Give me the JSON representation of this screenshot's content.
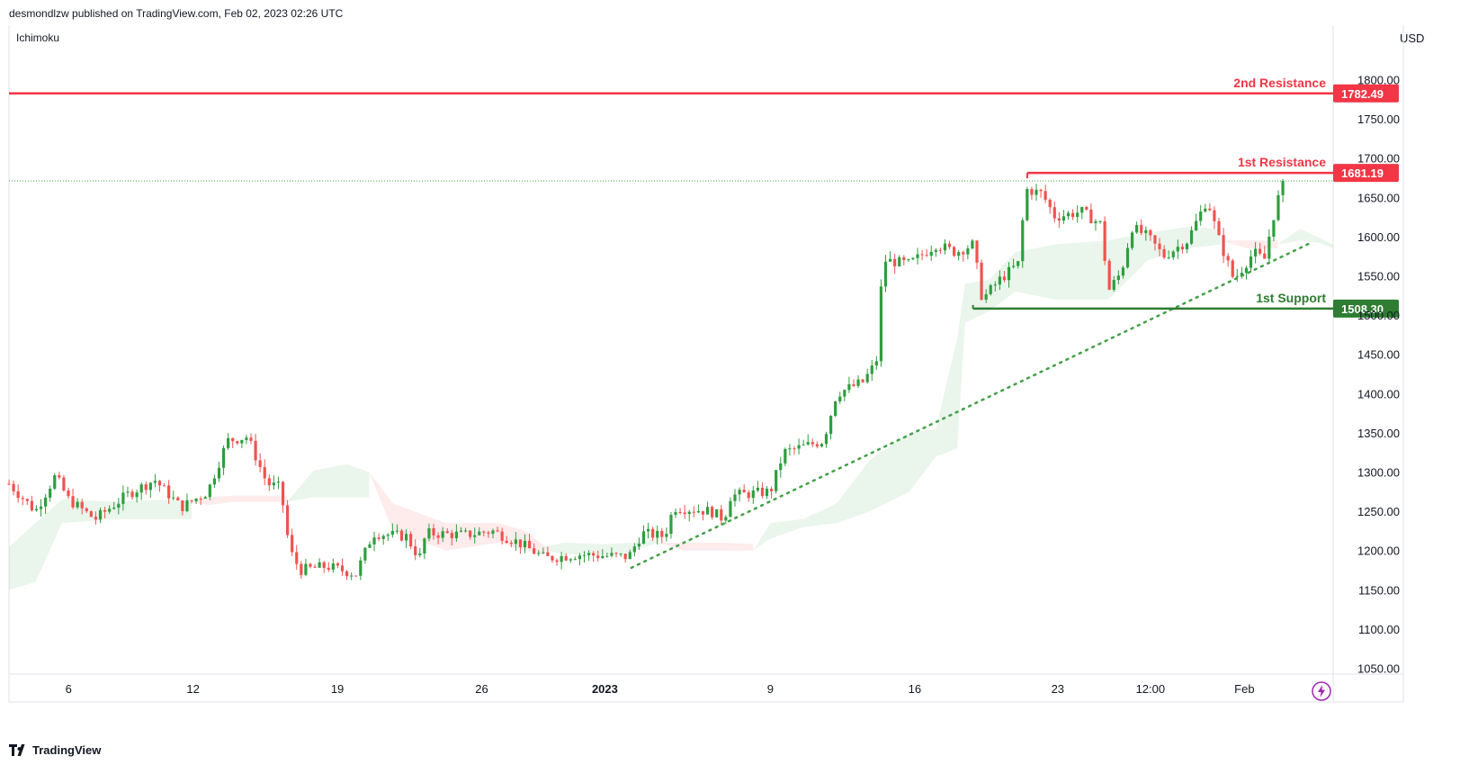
{
  "header": {
    "publisher": "desmondlzw published on TradingView.com, Feb 02, 2023 02:26 UTC"
  },
  "indicator": {
    "label": "Ichimoku"
  },
  "axis": {
    "currency": "USD"
  },
  "footer": {
    "brand": "TradingView",
    "logo_icon": "tradingview-logo-icon"
  },
  "chart_data": {
    "type": "candlestick",
    "title": "",
    "y_ticks": [
      1050,
      1100,
      1150,
      1200,
      1250,
      1300,
      1350,
      1400,
      1450,
      1500,
      1550,
      1600,
      1650,
      1700,
      1750,
      1800
    ],
    "y_tick_labels": [
      "1050.00",
      "1100.00",
      "1150.00",
      "1200.00",
      "1250.00",
      "1300.00",
      "1350.00",
      "1400.00",
      "1450.00",
      "1500.00",
      "1550.00",
      "1600.00",
      "1650.00",
      "1700.00",
      "1750.00",
      "1800.00"
    ],
    "ylim": [
      1040,
      1830
    ],
    "x_labels": [
      {
        "label": "6",
        "bold": false,
        "position": 0.045
      },
      {
        "label": "12",
        "bold": false,
        "position": 0.139
      },
      {
        "label": "19",
        "bold": false,
        "position": 0.248
      },
      {
        "label": "26",
        "bold": false,
        "position": 0.357
      },
      {
        "label": "2023",
        "bold": true,
        "position": 0.45
      },
      {
        "label": "9",
        "bold": false,
        "position": 0.575
      },
      {
        "label": "16",
        "bold": false,
        "position": 0.684
      },
      {
        "label": "23",
        "bold": false,
        "position": 0.792
      },
      {
        "label": "12:00",
        "bold": false,
        "position": 0.862
      },
      {
        "label": "Feb",
        "bold": false,
        "position": 0.933
      }
    ],
    "levels": [
      {
        "name": "2nd Resistance",
        "value": 1782.49,
        "label": "1782.49",
        "color": "#f23645",
        "start": 0.0
      },
      {
        "name": "1st Resistance",
        "value": 1681.19,
        "label": "1681.19",
        "color": "#f23645",
        "start": 0.769
      },
      {
        "name": "1st Support",
        "value": 1508.3,
        "label": "1508.30",
        "color": "#2e7d32",
        "start": 0.728
      }
    ],
    "last_price": 1671,
    "trendline": {
      "from": {
        "position": 0.47,
        "value": 1178
      },
      "to": {
        "position": 0.983,
        "value": 1592
      },
      "color": "#43a047"
    },
    "anchors": [
      {
        "p": 0.0,
        "v": 1285
      },
      {
        "p": 0.02,
        "v": 1250
      },
      {
        "p": 0.035,
        "v": 1295
      },
      {
        "p": 0.045,
        "v": 1265
      },
      {
        "p": 0.065,
        "v": 1240
      },
      {
        "p": 0.09,
        "v": 1272
      },
      {
        "p": 0.11,
        "v": 1290
      },
      {
        "p": 0.13,
        "v": 1255
      },
      {
        "p": 0.15,
        "v": 1275
      },
      {
        "p": 0.165,
        "v": 1340
      },
      {
        "p": 0.18,
        "v": 1345
      },
      {
        "p": 0.195,
        "v": 1285
      },
      {
        "p": 0.205,
        "v": 1280
      },
      {
        "p": 0.212,
        "v": 1200
      },
      {
        "p": 0.22,
        "v": 1175
      },
      {
        "p": 0.24,
        "v": 1180
      },
      {
        "p": 0.262,
        "v": 1170
      },
      {
        "p": 0.275,
        "v": 1222
      },
      {
        "p": 0.3,
        "v": 1218
      },
      {
        "p": 0.31,
        "v": 1190
      },
      {
        "p": 0.315,
        "v": 1222
      },
      {
        "p": 0.345,
        "v": 1220
      },
      {
        "p": 0.365,
        "v": 1225
      },
      {
        "p": 0.385,
        "v": 1210
      },
      {
        "p": 0.405,
        "v": 1190
      },
      {
        "p": 0.43,
        "v": 1195
      },
      {
        "p": 0.468,
        "v": 1192
      },
      {
        "p": 0.478,
        "v": 1222
      },
      {
        "p": 0.495,
        "v": 1218
      },
      {
        "p": 0.502,
        "v": 1255
      },
      {
        "p": 0.53,
        "v": 1250
      },
      {
        "p": 0.54,
        "v": 1240
      },
      {
        "p": 0.545,
        "v": 1270
      },
      {
        "p": 0.575,
        "v": 1275
      },
      {
        "p": 0.585,
        "v": 1325
      },
      {
        "p": 0.615,
        "v": 1340
      },
      {
        "p": 0.625,
        "v": 1400
      },
      {
        "p": 0.645,
        "v": 1415
      },
      {
        "p": 0.655,
        "v": 1440
      },
      {
        "p": 0.66,
        "v": 1570
      },
      {
        "p": 0.68,
        "v": 1565
      },
      {
        "p": 0.7,
        "v": 1590
      },
      {
        "p": 0.715,
        "v": 1580
      },
      {
        "p": 0.728,
        "v": 1590
      },
      {
        "p": 0.735,
        "v": 1520
      },
      {
        "p": 0.748,
        "v": 1545
      },
      {
        "p": 0.762,
        "v": 1565
      },
      {
        "p": 0.768,
        "v": 1660
      },
      {
        "p": 0.78,
        "v": 1655
      },
      {
        "p": 0.79,
        "v": 1625
      },
      {
        "p": 0.81,
        "v": 1632
      },
      {
        "p": 0.825,
        "v": 1615
      },
      {
        "p": 0.83,
        "v": 1530
      },
      {
        "p": 0.84,
        "v": 1555
      },
      {
        "p": 0.848,
        "v": 1612
      },
      {
        "p": 0.86,
        "v": 1600
      },
      {
        "p": 0.872,
        "v": 1575
      },
      {
        "p": 0.89,
        "v": 1595
      },
      {
        "p": 0.905,
        "v": 1648
      },
      {
        "p": 0.913,
        "v": 1600
      },
      {
        "p": 0.925,
        "v": 1545
      },
      {
        "p": 0.94,
        "v": 1580
      },
      {
        "p": 0.948,
        "v": 1570
      },
      {
        "p": 0.954,
        "v": 1620
      },
      {
        "p": 0.962,
        "v": 1671
      }
    ],
    "cloud_segments": [
      {
        "bullish": true,
        "points": [
          [
            0.0,
            1205,
            1150
          ],
          [
            0.02,
            1235,
            1160
          ],
          [
            0.04,
            1265,
            1235
          ],
          [
            0.08,
            1262,
            1240
          ],
          [
            0.12,
            1265,
            1240
          ],
          [
            0.138,
            1262,
            1240
          ]
        ]
      },
      {
        "bullish": false,
        "points": [
          [
            0.138,
            1262,
            1262
          ],
          [
            0.15,
            1268,
            1258
          ],
          [
            0.17,
            1270,
            1262
          ],
          [
            0.21,
            1270,
            1262
          ]
        ]
      },
      {
        "bullish": true,
        "points": [
          [
            0.21,
            1262,
            1262
          ],
          [
            0.23,
            1302,
            1268
          ],
          [
            0.255,
            1310,
            1268
          ],
          [
            0.272,
            1300,
            1268
          ]
        ]
      },
      {
        "bullish": false,
        "points": [
          [
            0.272,
            1300,
            1300
          ],
          [
            0.29,
            1260,
            1225
          ],
          [
            0.33,
            1235,
            1200
          ],
          [
            0.37,
            1235,
            1210
          ],
          [
            0.39,
            1225,
            1200
          ],
          [
            0.405,
            1205,
            1195
          ]
        ]
      },
      {
        "bullish": true,
        "points": [
          [
            0.405,
            1205,
            1200
          ],
          [
            0.42,
            1210,
            1195
          ],
          [
            0.45,
            1208,
            1195
          ],
          [
            0.47,
            1210,
            1198
          ],
          [
            0.49,
            1215,
            1210
          ]
        ]
      },
      {
        "bullish": false,
        "points": [
          [
            0.49,
            1210,
            1210
          ],
          [
            0.51,
            1210,
            1200
          ],
          [
            0.54,
            1210,
            1200
          ],
          [
            0.562,
            1208,
            1200
          ]
        ]
      },
      {
        "bullish": true,
        "points": [
          [
            0.562,
            1200,
            1200
          ],
          [
            0.575,
            1235,
            1215
          ],
          [
            0.6,
            1240,
            1230
          ],
          [
            0.625,
            1260,
            1235
          ],
          [
            0.65,
            1315,
            1250
          ],
          [
            0.68,
            1350,
            1275
          ],
          [
            0.7,
            1355,
            1320
          ],
          [
            0.716,
            1470,
            1330
          ],
          [
            0.722,
            1540,
            1490
          ],
          [
            0.74,
            1545,
            1505
          ],
          [
            0.76,
            1580,
            1530
          ],
          [
            0.79,
            1590,
            1520
          ],
          [
            0.83,
            1595,
            1520
          ],
          [
            0.86,
            1605,
            1570
          ],
          [
            0.89,
            1612,
            1585
          ],
          [
            0.915,
            1610,
            1590
          ]
        ]
      },
      {
        "bullish": false,
        "points": [
          [
            0.915,
            1595,
            1595
          ],
          [
            0.935,
            1595,
            1585
          ],
          [
            0.958,
            1595,
            1585
          ]
        ]
      },
      {
        "bullish": true,
        "points": [
          [
            0.958,
            1590,
            1590
          ],
          [
            0.975,
            1610,
            1595
          ],
          [
            0.99,
            1598,
            1592
          ],
          [
            1.0,
            1590,
            1585
          ]
        ]
      }
    ]
  }
}
